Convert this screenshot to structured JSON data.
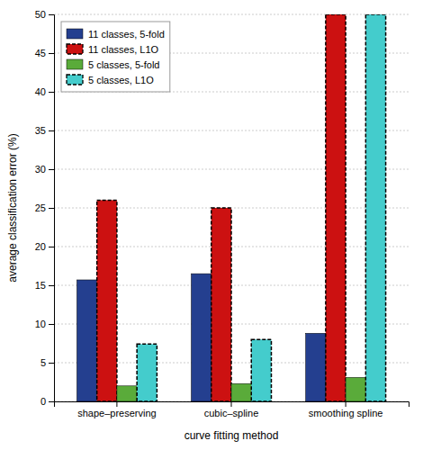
{
  "chart_data": {
    "type": "bar",
    "categories": [
      "shape–preserving",
      "cubic–spline",
      "smoothing spline"
    ],
    "series": [
      {
        "name": "11 classes, 5-fold",
        "color": "#243F8F",
        "line_style": "solid",
        "values": [
          15.7,
          16.5,
          8.8
        ]
      },
      {
        "name": "11 classes, L1O",
        "color": "#CC1111",
        "line_style": "dashed",
        "values": [
          26.0,
          25.0,
          50.0
        ]
      },
      {
        "name": "5 classes, 5-fold",
        "color": "#5AAB3A",
        "line_style": "solid",
        "values": [
          2.0,
          2.3,
          3.1
        ]
      },
      {
        "name": "5 classes, L1O",
        "color": "#44CCCC",
        "line_style": "dashed",
        "values": [
          7.4,
          8.0,
          50.0
        ]
      }
    ],
    "xlabel": "curve fitting method",
    "ylabel": "average classification error (%)",
    "ylim": [
      0,
      50
    ],
    "yticks": [
      0,
      5,
      10,
      15,
      20,
      25,
      30,
      35,
      40,
      45,
      50
    ],
    "grid": true,
    "legend": "upper left"
  }
}
